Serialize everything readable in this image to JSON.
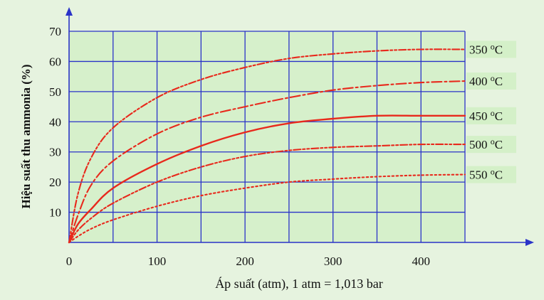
{
  "chart_data": {
    "type": "line",
    "xlabel": "Áp suất (atm), 1 atm = 1,013 bar",
    "ylabel": "Hiệu suất thu ammonia (%)",
    "xlim": [
      0,
      450
    ],
    "ylim": [
      0,
      70
    ],
    "x_ticks": [
      "0",
      "100",
      "200",
      "300",
      "400"
    ],
    "y_ticks": [
      "10",
      "20",
      "30",
      "40",
      "50",
      "60",
      "70"
    ],
    "grid": true,
    "line_color": "#e8291c",
    "grid_color": "#2a33c8",
    "series": [
      {
        "name": "350 oC",
        "label_main": "350 ",
        "label_sup": "o",
        "label_unit": "C",
        "style": "dashdotdot",
        "x": [
          0,
          10,
          25,
          50,
          100,
          150,
          200,
          250,
          300,
          350,
          400,
          450
        ],
        "y": [
          0,
          16,
          28,
          38,
          48,
          54,
          58,
          61,
          62.5,
          63.5,
          64,
          64
        ]
      },
      {
        "name": "400 oC",
        "label_main": "400 ",
        "label_sup": "o",
        "label_unit": "C",
        "style": "dashdot",
        "x": [
          0,
          10,
          25,
          50,
          100,
          150,
          200,
          250,
          300,
          350,
          400,
          450
        ],
        "y": [
          0,
          9,
          19,
          27,
          36,
          41.5,
          45,
          48,
          50.5,
          52,
          53,
          53.5
        ]
      },
      {
        "name": "450 oC",
        "label_main": "450 ",
        "label_sup": "o",
        "label_unit": "C",
        "style": "solid",
        "x": [
          0,
          10,
          25,
          50,
          100,
          150,
          200,
          250,
          300,
          350,
          400,
          450
        ],
        "y": [
          0,
          6,
          11,
          18,
          26,
          32,
          36.5,
          39.5,
          41,
          42,
          42,
          42
        ]
      },
      {
        "name": "500 oC",
        "label_main": "500 ",
        "label_sup": "o",
        "label_unit": "C",
        "style": "dashdotdot",
        "x": [
          0,
          10,
          25,
          50,
          100,
          150,
          200,
          250,
          300,
          350,
          400,
          450
        ],
        "y": [
          0,
          4,
          8,
          13,
          20,
          25,
          28.5,
          30.5,
          31.5,
          32,
          32.5,
          32.5
        ]
      },
      {
        "name": "550 oC",
        "label_main": "550 ",
        "label_sup": "o",
        "label_unit": "C",
        "style": "dotted",
        "x": [
          0,
          10,
          25,
          50,
          100,
          150,
          200,
          250,
          300,
          350,
          400,
          450
        ],
        "y": [
          0,
          2,
          4.5,
          7.5,
          12,
          15.5,
          18,
          20,
          21,
          21.8,
          22.3,
          22.5
        ]
      }
    ]
  }
}
